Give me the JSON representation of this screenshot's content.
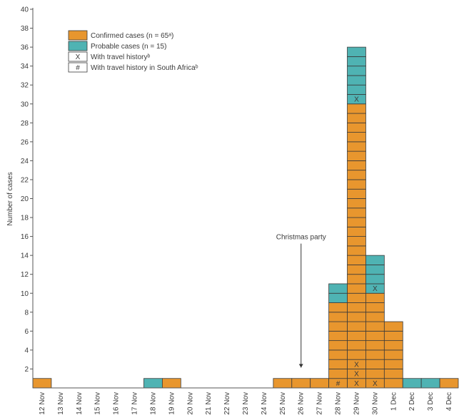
{
  "chart_data": {
    "type": "bar",
    "title": "",
    "xlabel": "",
    "ylabel": "Number of cases",
    "ylim": [
      0,
      40
    ],
    "yticks": [
      2,
      4,
      6,
      8,
      10,
      12,
      14,
      16,
      18,
      20,
      22,
      24,
      26,
      28,
      30,
      32,
      34,
      36,
      38,
      40
    ],
    "categories": [
      "12 Nov",
      "13 Nov",
      "14 Nov",
      "15 Nov",
      "16 Nov",
      "17 Nov",
      "18 Nov",
      "19 Nov",
      "20 Nov",
      "21 Nov",
      "22 Nov",
      "23 Nov",
      "24 Nov",
      "25 Nov",
      "26 Nov",
      "27 Nov",
      "28 Nov",
      "29 Nov",
      "30 Nov",
      "1 Dec",
      "2 Dec",
      "3 Dec",
      "4 Dec"
    ],
    "series": [
      {
        "name": "Confirmed cases (n = 65ᵃ)",
        "color": "#E8962E",
        "values": [
          1,
          0,
          0,
          0,
          0,
          0,
          0,
          1,
          0,
          0,
          0,
          0,
          0,
          1,
          1,
          1,
          9,
          30,
          10,
          7,
          0,
          0,
          1
        ]
      },
      {
        "name": "Probable cases (n = 15)",
        "color": "#4FB3B3",
        "values": [
          0,
          0,
          0,
          0,
          0,
          0,
          1,
          0,
          0,
          0,
          0,
          0,
          0,
          0,
          0,
          0,
          2,
          6,
          4,
          0,
          1,
          1,
          0
        ]
      }
    ],
    "legend": {
      "position": "top-left",
      "items": [
        {
          "label": "Confirmed cases (n = 65ᵃ)",
          "swatch": "#E8962E",
          "symbol": ""
        },
        {
          "label": "Probable cases (n = 15)",
          "swatch": "#4FB3B3",
          "symbol": ""
        },
        {
          "label": "With travel historyᵇ",
          "swatch": "#ffffff",
          "symbol": "X"
        },
        {
          "label": "With travel history in South Africaᵇ",
          "swatch": "#ffffff",
          "symbol": "#"
        }
      ]
    },
    "markers": [
      {
        "category": "28 Nov",
        "level": 1,
        "symbol": "#"
      },
      {
        "category": "29 Nov",
        "level": 1,
        "symbol": "X"
      },
      {
        "category": "29 Nov",
        "level": 2,
        "symbol": "X"
      },
      {
        "category": "29 Nov",
        "level": 3,
        "symbol": "X"
      },
      {
        "category": "29 Nov",
        "level": 31,
        "symbol": "X"
      },
      {
        "category": "30 Nov",
        "level": 1,
        "symbol": "X"
      },
      {
        "category": "30 Nov",
        "level": 11,
        "symbol": "X"
      }
    ],
    "annotations": [
      {
        "text": "Christmas party",
        "category": "26 Nov",
        "value": 16
      }
    ],
    "colors": {
      "axis": "#555555",
      "text": "#3a3a3a",
      "cell_border": "#3a3a3a"
    }
  }
}
